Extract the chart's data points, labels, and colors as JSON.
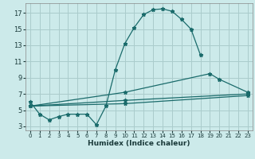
{
  "xlabel": "Humidex (Indice chaleur)",
  "background_color": "#cceaea",
  "grid_color": "#aacccc",
  "line_color": "#1a6b6b",
  "xlim": [
    -0.5,
    23.5
  ],
  "ylim": [
    2.5,
    18.2
  ],
  "xticks": [
    0,
    1,
    2,
    3,
    4,
    5,
    6,
    7,
    8,
    9,
    10,
    11,
    12,
    13,
    14,
    15,
    16,
    17,
    18,
    19,
    20,
    21,
    22,
    23
  ],
  "yticks": [
    3,
    5,
    7,
    9,
    11,
    13,
    15,
    17
  ],
  "line1_x": [
    0,
    1,
    2,
    3,
    4,
    5,
    6,
    7,
    8,
    9,
    10,
    11,
    12,
    13,
    14,
    15,
    16,
    17,
    18
  ],
  "line1_y": [
    6.0,
    4.5,
    3.8,
    4.2,
    4.5,
    4.5,
    4.5,
    3.2,
    5.5,
    10.0,
    13.2,
    15.2,
    16.8,
    17.4,
    17.5,
    17.2,
    16.2,
    15.0,
    11.8
  ],
  "line2_x": [
    0,
    10,
    19,
    20,
    23
  ],
  "line2_y": [
    5.5,
    7.2,
    9.5,
    8.8,
    7.2
  ],
  "line3_x": [
    0,
    10,
    23
  ],
  "line3_y": [
    5.5,
    6.2,
    7.0
  ],
  "line4_x": [
    0,
    10,
    23
  ],
  "line4_y": [
    5.5,
    5.8,
    6.8
  ],
  "xlabel_fontsize": 6.5,
  "tick_fontsize": 5.5
}
